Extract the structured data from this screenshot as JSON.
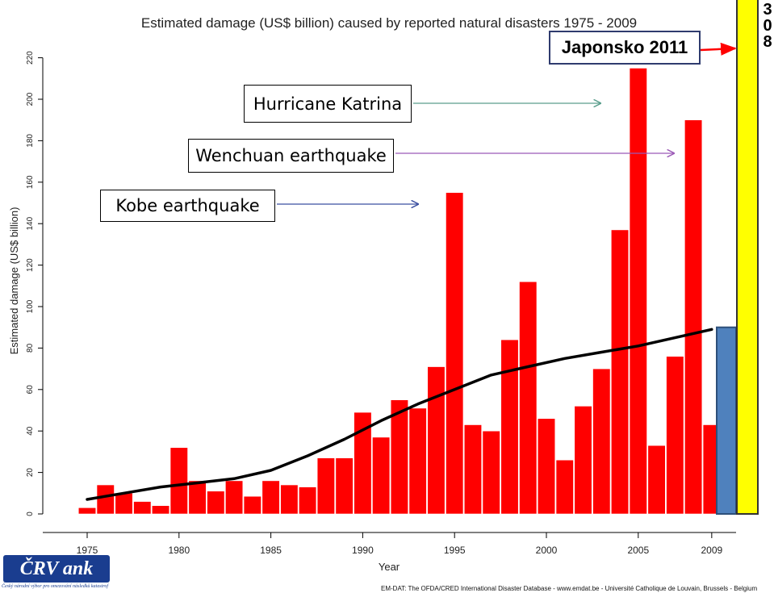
{
  "chart_data": {
    "type": "bar",
    "title": "Estimated damage (US$ billion) caused by reported natural disasters 1975 - 2009",
    "xlabel": "Year",
    "ylabel": "Estimated damage (US$ billion)",
    "ylim": [
      0,
      220
    ],
    "yticks": [
      "0",
      "20",
      "40",
      "60",
      "80",
      "100",
      "120",
      "140",
      "160",
      "180",
      "200",
      "220"
    ],
    "xticks": [
      "1975",
      "1980",
      "1985",
      "1990",
      "1995",
      "2000",
      "2005",
      "2009"
    ],
    "categories": [
      1975,
      1976,
      1977,
      1978,
      1979,
      1980,
      1981,
      1982,
      1983,
      1984,
      1985,
      1986,
      1987,
      1988,
      1989,
      1990,
      1991,
      1992,
      1993,
      1994,
      1995,
      1996,
      1997,
      1998,
      1999,
      2000,
      2001,
      2002,
      2003,
      2004,
      2005,
      2006,
      2007,
      2008,
      2009
    ],
    "values": [
      3,
      14,
      10,
      6,
      4,
      32,
      16,
      11,
      16,
      8.5,
      16,
      14,
      13,
      27,
      27,
      49,
      37,
      55,
      51,
      71,
      155,
      43,
      40,
      84,
      112,
      46,
      26,
      52,
      70,
      137,
      215,
      33,
      76,
      190,
      43
    ],
    "bar_color": "#ff0000",
    "trend": {
      "color": "#000000",
      "x": [
        1975,
        1977,
        1979,
        1981,
        1983,
        1985,
        1987,
        1989,
        1991,
        1993,
        1995,
        1997,
        1999,
        2001,
        2003,
        2005,
        2007,
        2009
      ],
      "y": [
        7,
        10,
        13,
        15,
        17,
        21,
        28,
        36,
        45,
        53,
        60,
        67,
        71,
        75,
        78,
        81,
        85,
        89
      ]
    },
    "extra_bars": [
      {
        "year": 2010,
        "value": 90,
        "color": "#4f81bd"
      },
      {
        "year": 2011,
        "value": 308,
        "color": "#ffff00"
      }
    ],
    "overflow_label": [
      "3",
      "0",
      "8"
    ],
    "annotations": [
      {
        "text": "Japonsko 2011",
        "arrow_color": "#ff0000"
      },
      {
        "text": "Hurricane Katrina",
        "arrow_color": "#5a9e8c"
      },
      {
        "text": "Wenchuan earthquake",
        "arrow_color": "#9b59b6"
      },
      {
        "text": "Kobe earthquake",
        "arrow_color": "#3b4fa0"
      }
    ],
    "grid": false
  },
  "logo": {
    "name": "ČRV ank",
    "subtitle": "Český národní výbor pro omezování následků katastrof"
  },
  "source": "EM-DAT: The OFDA/CRED International Disaster Database - www.emdat.be - Université Catholique de Louvain, Brussels - Belgium"
}
